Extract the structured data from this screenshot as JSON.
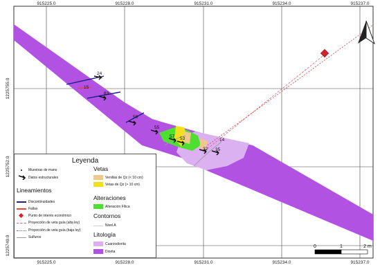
{
  "map": {
    "x_ticks_top": [
      "915225.0",
      "915228.0",
      "915231.0",
      "915234.0",
      "915237.0"
    ],
    "x_ticks_bottom": [
      "915225.0",
      "915228.0",
      "915231.0",
      "915234.0",
      "915237.0"
    ],
    "y_ticks": [
      "1225755.0",
      "1225752.0",
      "1225749.0"
    ],
    "north_arrow_icon": "north-arrow-icon",
    "scalebar": {
      "labels": [
        "0",
        "1",
        "2 m"
      ]
    },
    "structural_labels": [
      "24",
      "15",
      "83",
      "59",
      "55",
      "57",
      "53",
      "14",
      "32",
      "35"
    ],
    "colors": {
      "diorita": "#b252e3",
      "cuarzodiorita": "#dcb1f1",
      "alteracion_filica": "#4fdf33",
      "vetas_qz_mayor": "#f0e020",
      "venillas_qz_menor": "#f0c88a",
      "discontinuidades": "#1c1e8c",
      "fallas": "#e8453c",
      "punto_interes": "#d7222a",
      "proyeccion_alta": "#e06070",
      "proyeccion_baja": "#d04040",
      "sulfuros": "#9a9a9a",
      "nivel": "#cfcfcf"
    }
  },
  "legend": {
    "title": "Leyenda",
    "muestras": "Muestras de mano",
    "datos_estructurales": "Datos estructurales",
    "lineamientos": {
      "title": "Lineamientos",
      "items": [
        "Discontinuidades",
        "Fallas",
        "Punto de interés económico",
        "Proyección de veta guía (alta ley)",
        "Proyección de veta guía (baja ley)",
        "Sulfuros"
      ]
    },
    "vetas": {
      "title": "Vetas",
      "items": [
        "Venillas de Qz (< 10 cm)",
        "Vetas de Qz (> 10 cm)"
      ]
    },
    "alteraciones": {
      "title": "Alteraciones",
      "items": [
        "Alteración Fílica"
      ]
    },
    "contornos": {
      "title": "Contornos",
      "items": [
        "Nivel A"
      ]
    },
    "litologia": {
      "title": "Litología",
      "items": [
        "Cuarzodiorita",
        "Diorita"
      ]
    }
  }
}
